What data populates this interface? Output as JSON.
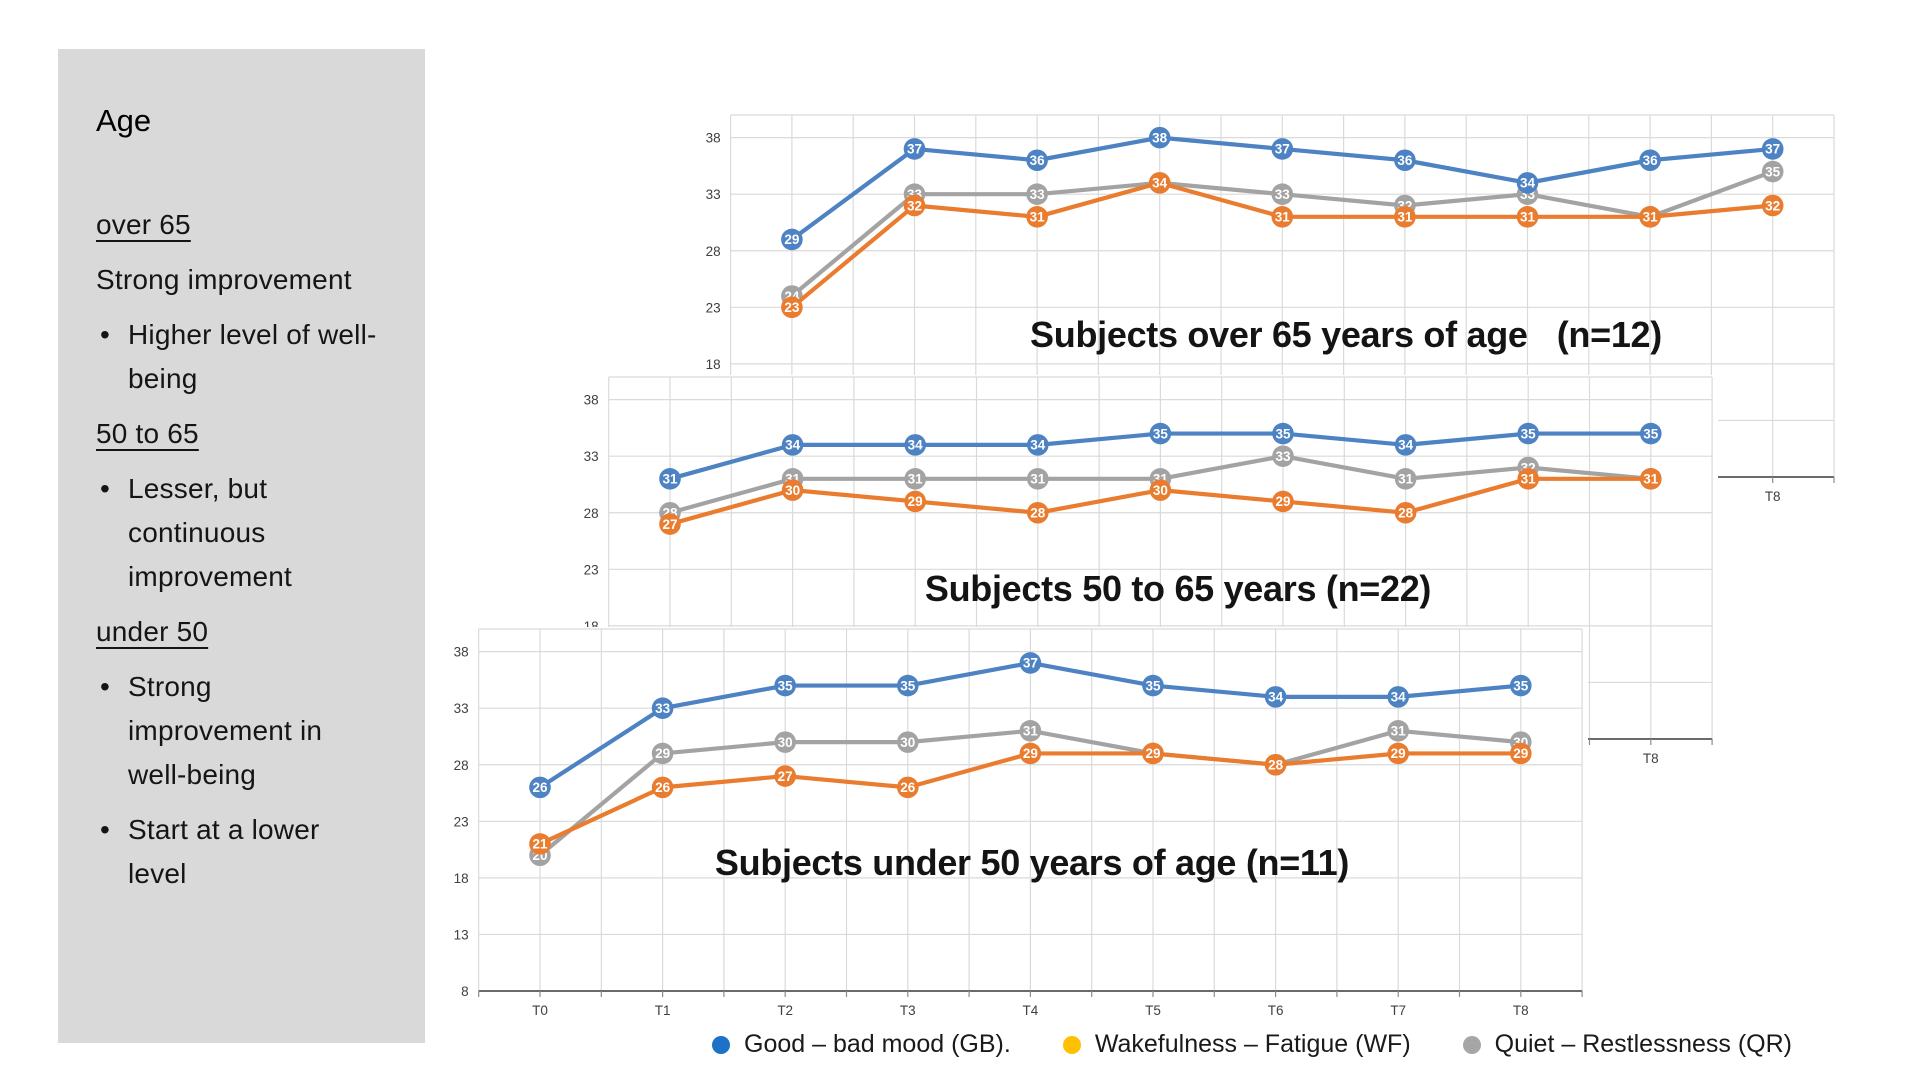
{
  "slide": {
    "background": "#FFFFFF"
  },
  "sidebar": {
    "background": "#D9D9D9",
    "title": "Age",
    "lines": [
      {
        "style": "heading",
        "text": "over 65"
      },
      {
        "style": "plain",
        "text": "Strong improvement"
      },
      {
        "style": "bullet",
        "text": "Higher level of well-"
      },
      {
        "style": "cont",
        "text": "being"
      },
      {
        "style": "heading",
        "text": "50 to 65"
      },
      {
        "style": "bullet",
        "text": "Lesser, but"
      },
      {
        "style": "cont",
        "text": "continuous"
      },
      {
        "style": "cont",
        "text": "improvement"
      },
      {
        "style": "heading",
        "text": "under 50"
      },
      {
        "style": "bullet",
        "text": "Strong"
      },
      {
        "style": "cont",
        "text": "improvement in"
      },
      {
        "style": "cont",
        "text": "well-being"
      },
      {
        "style": "bullet",
        "text": "Start at a lower"
      },
      {
        "style": "cont",
        "text": "level"
      }
    ]
  },
  "chart_data": [
    {
      "id": "over-65",
      "type": "line",
      "title": "Subjects over 65 years of age   (n=12)",
      "categories": [
        "T0",
        "T1",
        "T2",
        "T3",
        "T4",
        "T5",
        "T6",
        "T7",
        "T8"
      ],
      "ylim": [
        8,
        40
      ],
      "yticks": [
        8,
        13,
        18,
        23,
        28,
        33,
        38
      ],
      "grid": true,
      "legend_position": "none",
      "series": [
        {
          "name": "Good – bad mood (GB)",
          "color": "#4D82C3",
          "values": [
            29,
            37,
            36,
            38,
            37,
            36,
            34,
            36,
            37
          ]
        },
        {
          "name": "Wakefulness – Fatigue (WF)",
          "color": "#E97C2E",
          "values": [
            23,
            32,
            31,
            34,
            31,
            31,
            31,
            31,
            32
          ]
        },
        {
          "name": "Quiet – Restlessness (QR)",
          "color": "#A3A3A3",
          "values": [
            24,
            33,
            33,
            34,
            33,
            32,
            33,
            31,
            35
          ]
        }
      ]
    },
    {
      "id": "50-to-65",
      "type": "line",
      "title": "Subjects 50 to 65 years (n=22)",
      "categories": [
        "T0",
        "T1",
        "T2",
        "T3",
        "T4",
        "T5",
        "T6",
        "T7",
        "T8"
      ],
      "ylim": [
        8,
        40
      ],
      "yticks": [
        8,
        13,
        18,
        23,
        28,
        33,
        38
      ],
      "grid": true,
      "legend_position": "none",
      "series": [
        {
          "name": "Good – bad mood (GB)",
          "color": "#4D82C3",
          "values": [
            31,
            34,
            34,
            34,
            35,
            35,
            34,
            35,
            35
          ]
        },
        {
          "name": "Wakefulness – Fatigue (WF)",
          "color": "#E97C2E",
          "values": [
            27,
            30,
            29,
            28,
            30,
            29,
            28,
            31,
            31
          ]
        },
        {
          "name": "Quiet – Restlessness (QR)",
          "color": "#A3A3A3",
          "values": [
            28,
            31,
            31,
            31,
            31,
            33,
            31,
            32,
            31
          ]
        }
      ]
    },
    {
      "id": "under-50",
      "type": "line",
      "title": "Subjects under 50 years of age (n=11)",
      "categories": [
        "T0",
        "T1",
        "T2",
        "T3",
        "T4",
        "T5",
        "T6",
        "T7",
        "T8"
      ],
      "ylim": [
        8,
        40
      ],
      "yticks": [
        8,
        13,
        18,
        23,
        28,
        33,
        38
      ],
      "grid": true,
      "legend_position": "none",
      "series": [
        {
          "name": "Good – bad mood (GB)",
          "color": "#4D82C3",
          "values": [
            26,
            33,
            35,
            35,
            37,
            35,
            34,
            34,
            35
          ]
        },
        {
          "name": "Wakefulness – Fatigue (WF)",
          "color": "#E97C2E",
          "values": [
            21,
            26,
            27,
            26,
            29,
            29,
            28,
            29,
            29
          ]
        },
        {
          "name": "Quiet – Restlessness (QR)",
          "color": "#A3A3A3",
          "values": [
            20,
            29,
            30,
            30,
            31,
            29,
            28,
            31,
            30
          ]
        }
      ]
    }
  ],
  "legend": {
    "items": [
      {
        "label": "Good – bad mood (GB).",
        "color": "#1D71C6"
      },
      {
        "label": "Wakefulness – Fatigue (WF)",
        "color": "#FFC000"
      },
      {
        "label": "Quiet – Restlessness (QR)",
        "color": "#A6A6A6"
      }
    ]
  },
  "colors": {
    "grid": "#DADADA",
    "axis_line": "#6B6B6B",
    "tick": "#8C8C8C",
    "axis_text": "#3F3F3F",
    "data_label_text": "#FFFFFF",
    "panel_background": "#FFFFFF"
  }
}
